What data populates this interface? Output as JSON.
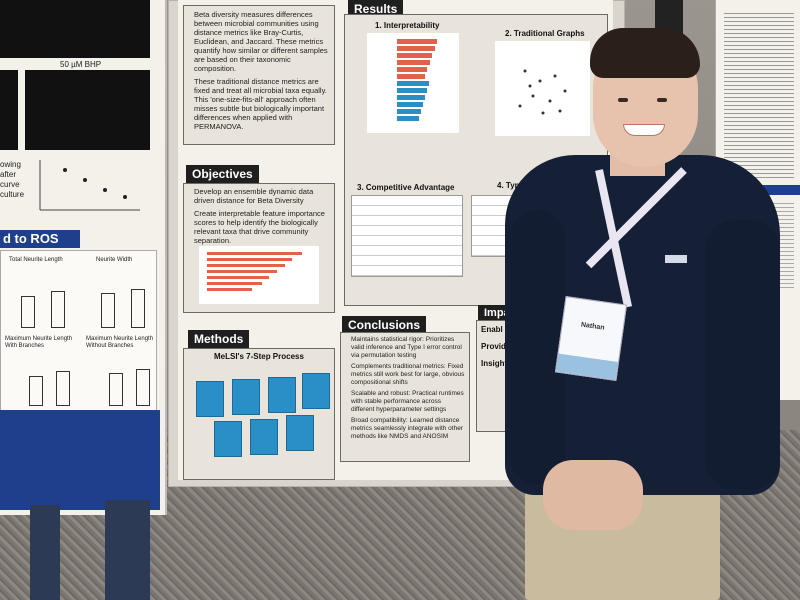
{
  "left_poster": {
    "caption_50": "50 µM BHP",
    "ros_header": "d to ROS",
    "chart_titles": [
      "Total Neurite Length",
      "Neurite Width",
      "Maximum Neurite Length With Branches",
      "Maximum Neurite Length Without Branches"
    ],
    "side_words": [
      "owing",
      "after",
      "curve",
      "culture"
    ]
  },
  "center_poster": {
    "beta_text_1": "Beta diversity measures differences between microbial communities using distance metrics like Bray-Curtis, Euclidean, and Jaccard. These metrics quantify how similar or different samples are based on their taxonomic composition.",
    "beta_text_2": "These traditional distance metrics are fixed and treat all microbial taxa equally. This 'one-size-fits-all' approach often misses subtle but biologically important differences when applied with PERMANOVA.",
    "objectives_header": "Objectives",
    "objective_1": "Develop an ensemble dynamic data driven distance for Beta Diversity",
    "objective_2": "Create interpretable feature importance scores to help identify the biologically relevant taxa that drive community separation.",
    "methods_header": "Methods",
    "methods_subtitle": "MeLSI's 7-Step Process",
    "results_header": "Results",
    "result_1": "1. Interpretability",
    "result_2": "2. Traditional Graphs",
    "result_3": "3. Competitive Advantage",
    "result_4": "4. Type I Valid",
    "conclusions_header": "Conclusions",
    "conclusion_1": "Maintains statistical rigor: Prioritizes valid inference and Type I error control via permutation testing",
    "conclusion_2": "Complements traditional metrics: Fixed metrics still work best for large, obvious compositional shifts",
    "conclusion_3": "Scalable and robust: Practical runtimes with stable performance across different hyperparameter settings",
    "conclusion_4": "Broad compatibility: Learned distance metrics seamlessly integrate with other methods like NMDS and ANOSIM",
    "impact_header": "Impac",
    "impact_items": [
      "Enabl",
      "Provid",
      "Insight"
    ]
  },
  "person": {
    "badge_name": "Nathan"
  },
  "colors": {
    "sweater": "#152036",
    "pants": "#c9bc9e",
    "poster_header": "#1f1f1f",
    "step_box": "#2a8fc6",
    "bar_chart": "#e2614a"
  }
}
